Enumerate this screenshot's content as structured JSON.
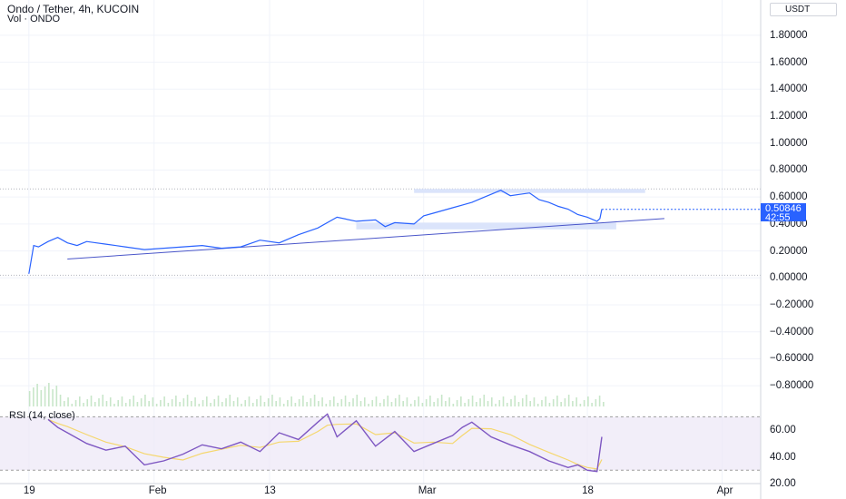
{
  "header": {
    "title": "Ondo / Tether, 4h, KUCOIN",
    "volume_label": "Vol · ONDO"
  },
  "price_scale": {
    "currency": "USDT",
    "current_price": "0.50846",
    "countdown": "42:55"
  },
  "rsi": {
    "label": "RSI (14, close)",
    "line_color": "#7e57c2",
    "signal_color": "#f5d76e",
    "band_fill": "#ede7f6"
  },
  "colors": {
    "price_line": "#2962ff",
    "trendline": "#4a56c9",
    "zone": "#dbe4fb",
    "volume": "#c8e6c9"
  },
  "chart_data": [
    {
      "type": "line",
      "title": "Ondo / Tether, 4h, KUCOIN",
      "ylabel": "USDT",
      "ylim": [
        -0.9,
        1.9
      ],
      "y_ticks": [
        "1.80000",
        "1.60000",
        "1.40000",
        "1.20000",
        "1.00000",
        "0.80000",
        "0.60000",
        "0.40000",
        "0.20000",
        "0.00000",
        "−0.20000",
        "−0.40000",
        "−0.60000",
        "−0.80000"
      ],
      "x_ticks": [
        "19",
        "Feb",
        "13",
        "Mar",
        "18",
        "Apr"
      ],
      "x_tick_values": [
        0,
        13,
        25,
        41,
        58,
        72
      ],
      "xlim": [
        -3,
        76
      ],
      "grid": true,
      "x": [
        0,
        0.5,
        1,
        2,
        3,
        4,
        5,
        6,
        7,
        8,
        10,
        12,
        14,
        16,
        18,
        20,
        22,
        24,
        26,
        28,
        30,
        32,
        34,
        36,
        37,
        38,
        40,
        41,
        42,
        44,
        45,
        46,
        47,
        48,
        49,
        50,
        51,
        52,
        53,
        54,
        55,
        56,
        57,
        58,
        59,
        59.3,
        59.5
      ],
      "values": [
        0.03,
        0.24,
        0.23,
        0.27,
        0.3,
        0.26,
        0.24,
        0.27,
        0.26,
        0.25,
        0.23,
        0.21,
        0.22,
        0.23,
        0.24,
        0.22,
        0.23,
        0.28,
        0.26,
        0.32,
        0.37,
        0.45,
        0.42,
        0.43,
        0.38,
        0.41,
        0.4,
        0.46,
        0.48,
        0.52,
        0.54,
        0.56,
        0.59,
        0.62,
        0.65,
        0.61,
        0.62,
        0.63,
        0.58,
        0.56,
        0.53,
        0.51,
        0.47,
        0.45,
        0.42,
        0.44,
        0.51
      ],
      "trendline": {
        "x": [
          4,
          66
        ],
        "y": [
          0.14,
          0.44
        ]
      },
      "zones": [
        {
          "x": [
            40,
            64
          ],
          "y": [
            0.63,
            0.66
          ]
        },
        {
          "x": [
            34,
            61
          ],
          "y": [
            0.36,
            0.41
          ]
        }
      ],
      "last_price": 0.50846
    },
    {
      "type": "line",
      "title": "RSI (14, close)",
      "ylim": [
        20,
        75
      ],
      "y_ticks": [
        "60.00",
        "40.00",
        "20.00"
      ],
      "y_tick_values": [
        60,
        40,
        20
      ],
      "band": [
        30,
        70
      ],
      "x": [
        2,
        3,
        4,
        6,
        8,
        10,
        12,
        14,
        16,
        18,
        20,
        22,
        24,
        26,
        28,
        30,
        31,
        32,
        34,
        36,
        38,
        40,
        42,
        44,
        45,
        46,
        48,
        50,
        52,
        54,
        56,
        57,
        58,
        59,
        59.5
      ],
      "values": [
        68,
        62,
        58,
        50,
        45,
        48,
        34,
        37,
        42,
        49,
        46,
        51,
        44,
        58,
        53,
        66,
        72,
        55,
        67,
        48,
        59,
        44,
        50,
        56,
        62,
        66,
        55,
        49,
        44,
        37,
        32,
        34,
        30,
        29,
        55
      ]
    }
  ]
}
